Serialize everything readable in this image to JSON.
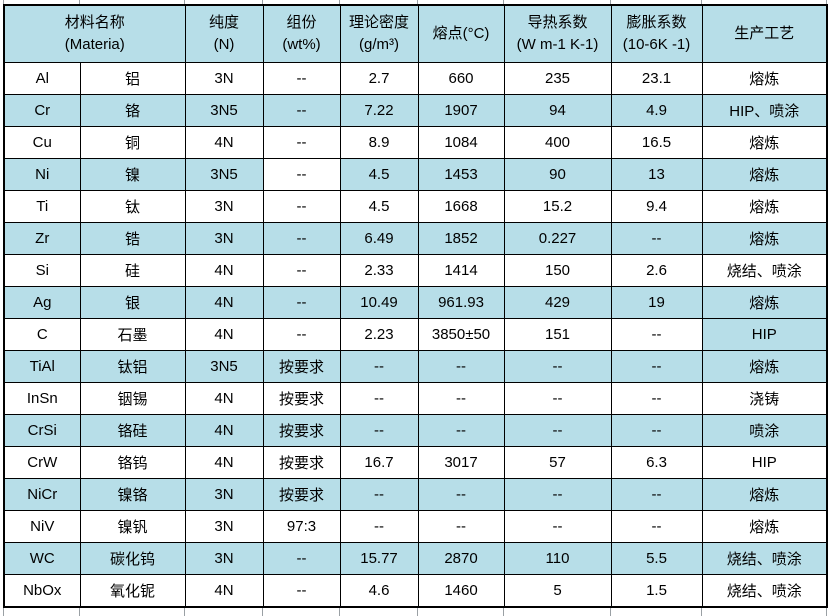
{
  "table": {
    "headers": [
      {
        "line1": "材料名称",
        "line2": "(Materia)",
        "span": 2
      },
      {
        "line1": "纯度",
        "line2": "(N)",
        "span": 1
      },
      {
        "line1": "组份",
        "line2": "(wt%)",
        "span": 1
      },
      {
        "line1": "理论密度",
        "line2": "(g/m³)",
        "span": 1
      },
      {
        "line1": "熔点(°C)",
        "line2": "",
        "span": 1
      },
      {
        "line1": "导热系数",
        "line2": "(W m-1 K-1)",
        "span": 1
      },
      {
        "line1": "膨胀系数",
        "line2": "(10-6K -1)",
        "span": 1
      },
      {
        "line1": "生产工艺",
        "line2": "",
        "span": 1
      }
    ],
    "columns": [
      "symbol",
      "name_cn",
      "purity",
      "composition",
      "density",
      "melting_point",
      "thermal_conductivity",
      "expansion_coefficient",
      "process"
    ],
    "rows": [
      {
        "cells": [
          "Al",
          "铝",
          "3N",
          "--",
          "2.7",
          "660",
          "235",
          "23.1",
          "熔炼"
        ],
        "shaded": false
      },
      {
        "cells": [
          "Cr",
          "铬",
          "3N5",
          "--",
          "7.22",
          "1907",
          "94",
          "4.9",
          "HIP、喷涂"
        ],
        "shaded": true
      },
      {
        "cells": [
          "Cu",
          "铜",
          "4N",
          "--",
          "8.9",
          "1084",
          "400",
          "16.5",
          "熔炼"
        ],
        "shaded": false
      },
      {
        "cells": [
          "Ni",
          "镍",
          "3N5",
          "--",
          "4.5",
          "1453",
          "90",
          "13",
          "熔炼"
        ],
        "shaded": true,
        "cell_bg_overrides": {
          "3": "plain"
        }
      },
      {
        "cells": [
          "Ti",
          "钛",
          "3N",
          "--",
          "4.5",
          "1668",
          "15.2",
          "9.4",
          "熔炼"
        ],
        "shaded": false
      },
      {
        "cells": [
          "Zr",
          "锆",
          "3N",
          "--",
          "6.49",
          "1852",
          "0.227",
          "--",
          "熔炼"
        ],
        "shaded": true
      },
      {
        "cells": [
          "Si",
          "硅",
          "4N",
          "--",
          "2.33",
          "1414",
          "150",
          "2.6",
          "烧结、喷涂"
        ],
        "shaded": false
      },
      {
        "cells": [
          "Ag",
          "银",
          "4N",
          "--",
          "10.49",
          "961.93",
          "429",
          "19",
          "熔炼"
        ],
        "shaded": true
      },
      {
        "cells": [
          "C",
          "石墨",
          "4N",
          "--",
          "2.23",
          "3850±50",
          "151",
          "--",
          "HIP"
        ],
        "shaded": false,
        "cell_bg_overrides": {
          "8": "shaded"
        }
      },
      {
        "cells": [
          "TiAl",
          "钛铝",
          "3N5",
          "按要求",
          "--",
          "--",
          "--",
          "--",
          "熔炼"
        ],
        "shaded": true
      },
      {
        "cells": [
          "InSn",
          "铟锡",
          "4N",
          "按要求",
          "--",
          "--",
          "--",
          "--",
          "浇铸"
        ],
        "shaded": false
      },
      {
        "cells": [
          "CrSi",
          "铬硅",
          "4N",
          "按要求",
          "--",
          "--",
          "--",
          "--",
          "喷涂"
        ],
        "shaded": true
      },
      {
        "cells": [
          "CrW",
          "铬钨",
          "4N",
          "按要求",
          "16.7",
          "3017",
          "57",
          "6.3",
          "HIP"
        ],
        "shaded": false
      },
      {
        "cells": [
          "NiCr",
          "镍铬",
          "3N",
          "按要求",
          "--",
          "--",
          "--",
          "--",
          "熔炼"
        ],
        "shaded": true
      },
      {
        "cells": [
          "NiV",
          "镍钒",
          "3N",
          "97:3",
          "--",
          "--",
          "--",
          "--",
          "熔炼"
        ],
        "shaded": false
      },
      {
        "cells": [
          "WC",
          "碳化钨",
          "3N",
          "--",
          "15.77",
          "2870",
          "110",
          "5.5",
          "烧结、喷涂"
        ],
        "shaded": true
      },
      {
        "cells": [
          "NbOx",
          "氧化铌",
          "4N",
          "--",
          "4.6",
          "1460",
          "5",
          "1.5",
          "烧结、喷涂"
        ],
        "shaded": false
      }
    ]
  },
  "colors": {
    "shaded_bg": "#b7dee8",
    "plain_bg": "#ffffff",
    "border": "#000000",
    "text": "#000000"
  }
}
